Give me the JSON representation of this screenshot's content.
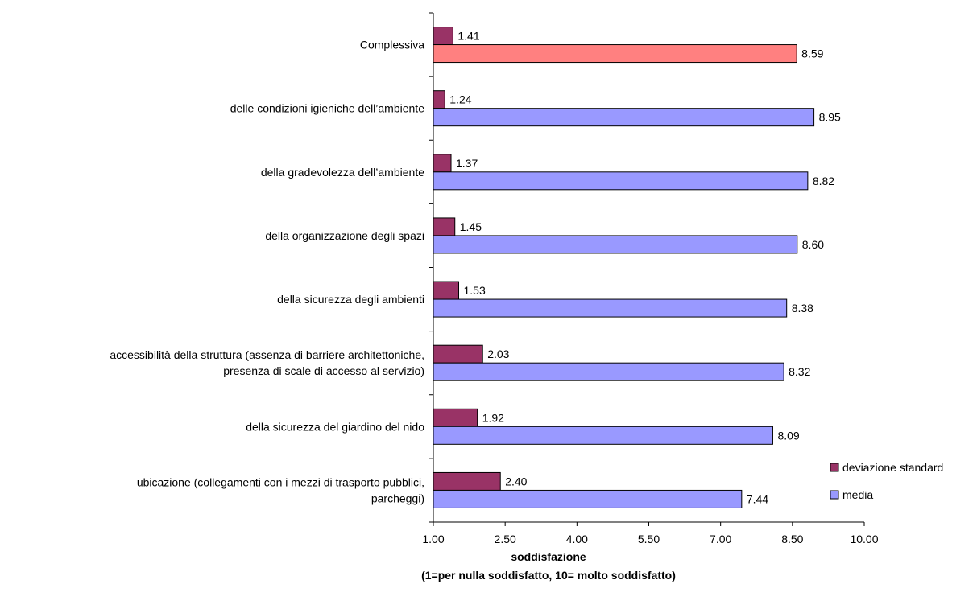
{
  "chart_data": {
    "type": "bar",
    "orientation": "horizontal",
    "categories": [
      [
        "Complessiva"
      ],
      [
        "delle condizioni igieniche dell’ambiente"
      ],
      [
        "della gradevolezza dell’ambiente"
      ],
      [
        "della organizzazione degli spazi"
      ],
      [
        "della sicurezza degli ambienti"
      ],
      [
        "accessibilità della struttura (assenza di barriere architettoniche,",
        "presenza di scale di accesso al servizio)"
      ],
      [
        "della sicurezza del giardino del nido"
      ],
      [
        "ubicazione (collegamenti con i mezzi di trasporto pubblici,",
        "parcheggi)"
      ]
    ],
    "series": [
      {
        "name": "deviazione standard",
        "color": "#993366",
        "values": [
          1.41,
          1.24,
          1.37,
          1.45,
          1.53,
          2.03,
          1.92,
          2.4
        ],
        "labels": [
          "1.41",
          "1.24",
          "1.37",
          "1.45",
          "1.53",
          "2.03",
          "1.92",
          "2.40"
        ]
      },
      {
        "name": "media",
        "color": "#9999ff",
        "highlight": {
          "index": 0,
          "color": "#ff8080"
        },
        "values": [
          8.59,
          8.95,
          8.82,
          8.6,
          8.38,
          8.32,
          8.09,
          7.44
        ],
        "labels": [
          "8.59",
          "8.95",
          "8.82",
          "8.60",
          "8.38",
          "8.32",
          "8.09",
          "7.44"
        ]
      }
    ],
    "xlim": [
      1.0,
      10.0
    ],
    "xticks": [
      1.0,
      2.5,
      4.0,
      5.5,
      7.0,
      8.5,
      10.0
    ],
    "xtick_labels": [
      "1.00",
      "2.50",
      "4.00",
      "5.50",
      "7.00",
      "8.50",
      "10.00"
    ],
    "xlabel": [
      "soddisfazione",
      "(1=per nulla soddisfatto, 10= molto soddisfatto)"
    ],
    "legend": {
      "position": "right",
      "entries": [
        "deviazione standard",
        "media"
      ]
    },
    "grid": false
  }
}
